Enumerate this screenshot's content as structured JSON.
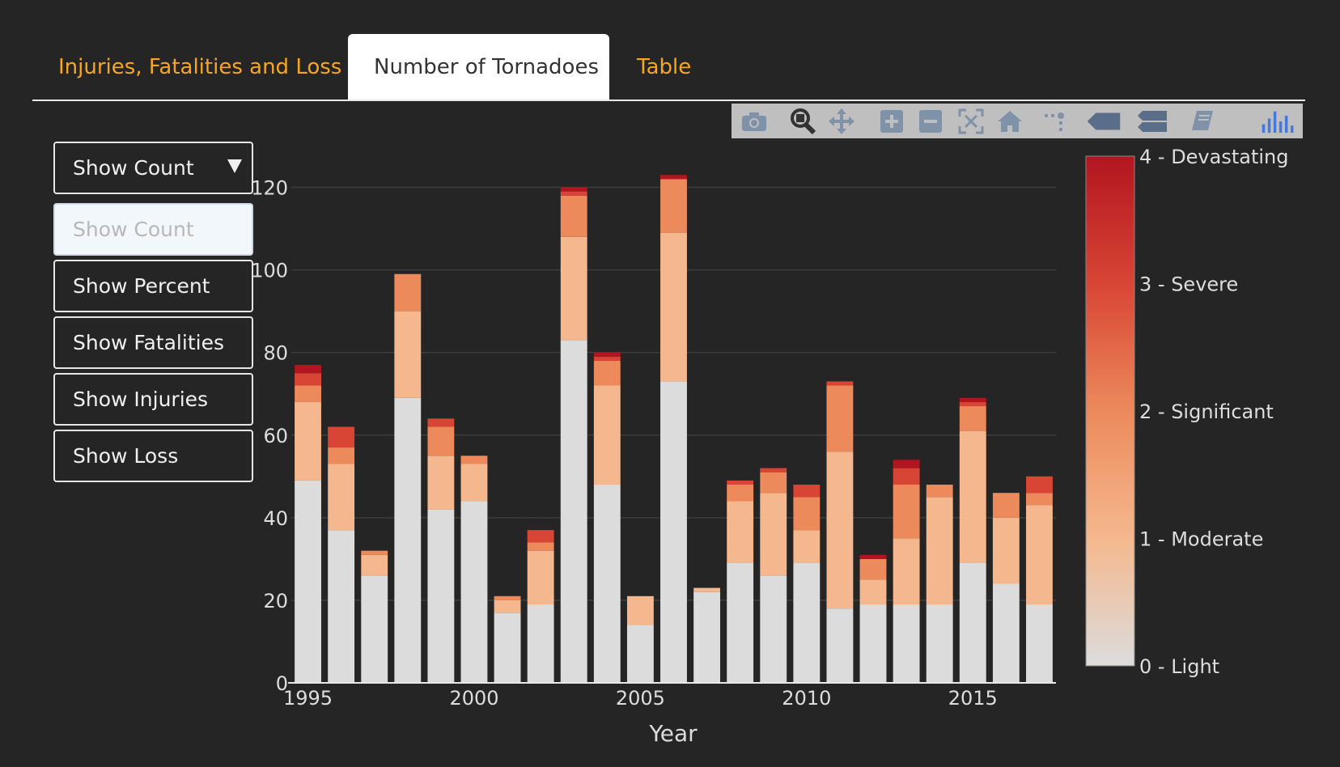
{
  "tabs": [
    {
      "label": "Injuries, Fatalities and Loss",
      "active": false
    },
    {
      "label": "Number of Tornadoes",
      "active": true
    },
    {
      "label": "Table",
      "active": false
    }
  ],
  "modebar": {
    "icons": [
      "camera-icon",
      "zoom-icon",
      "pan-icon",
      "zoom-in-icon",
      "zoom-out-icon",
      "autoscale-icon",
      "home-icon",
      "spike-lines-icon",
      "hover-closest-icon",
      "hover-compare-icon",
      "edit-chart-icon",
      "plotly-logo-icon"
    ]
  },
  "dropdown": {
    "selected_label": "Show Count",
    "options": [
      "Show Count",
      "Show Percent",
      "Show Fatalities",
      "Show Injuries",
      "Show Loss"
    ]
  },
  "colors": {
    "light": "#dcdcdc",
    "moderate": "#f5b88e",
    "significant": "#ec8a5c",
    "severe": "#d84535",
    "devastating": "#b2151f",
    "background": "#252525",
    "accent_tab": "#f5a623"
  },
  "chart_data": {
    "type": "bar",
    "stacked": true,
    "xlabel": "Year",
    "ylabel": "",
    "ylim": [
      0,
      125
    ],
    "xlim": [
      1994.5,
      2017.5
    ],
    "yticks": [
      0,
      20,
      40,
      60,
      80,
      100,
      120
    ],
    "xticks": [
      1995,
      2000,
      2005,
      2010,
      2015
    ],
    "grid": true,
    "x": [
      1995,
      1996,
      1997,
      1998,
      1999,
      2000,
      2001,
      2002,
      2003,
      2004,
      2005,
      2006,
      2007,
      2008,
      2009,
      2010,
      2011,
      2012,
      2013,
      2014,
      2015,
      2016,
      2017
    ],
    "series": [
      {
        "name": "0 - Light",
        "color": "#dcdcdc",
        "values": [
          49,
          37,
          26,
          69,
          42,
          44,
          17,
          19,
          83,
          48,
          14,
          73,
          22,
          29,
          26,
          29,
          18,
          19,
          19,
          19,
          29,
          24,
          19
        ]
      },
      {
        "name": "1 - Moderate",
        "color": "#f5b88e",
        "values": [
          19,
          16,
          5,
          21,
          13,
          9,
          3,
          13,
          25,
          24,
          7,
          36,
          1,
          15,
          20,
          8,
          38,
          6,
          16,
          26,
          32,
          16,
          24
        ]
      },
      {
        "name": "2 - Significant",
        "color": "#ec8a5c",
        "values": [
          4,
          4,
          1,
          9,
          7,
          2,
          1,
          2,
          10,
          6,
          0,
          13,
          0,
          4,
          5,
          8,
          16,
          5,
          13,
          3,
          6,
          6,
          3
        ]
      },
      {
        "name": "3 - Severe",
        "color": "#d84535",
        "values": [
          3,
          5,
          0,
          0,
          2,
          0,
          0,
          3,
          1,
          1,
          0,
          0,
          0,
          1,
          1,
          3,
          1,
          0,
          4,
          0,
          1,
          0,
          4
        ]
      },
      {
        "name": "4 - Devastating",
        "color": "#b2151f",
        "values": [
          2,
          0,
          0,
          0,
          0,
          0,
          0,
          0,
          1,
          1,
          0,
          1,
          0,
          0,
          0,
          0,
          0,
          1,
          2,
          0,
          1,
          0,
          0
        ]
      }
    ],
    "colorbar": {
      "labels": [
        "4 - Devastating",
        "3 - Severe",
        "2 - Significant",
        "1 - Moderate",
        "0 - Light"
      ],
      "range": [
        0,
        4
      ]
    }
  }
}
